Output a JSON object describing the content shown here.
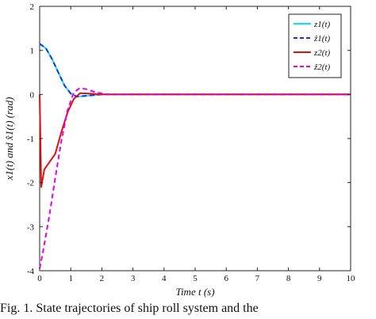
{
  "chart_data": {
    "type": "line",
    "title": "",
    "xlabel": "Time t (s)",
    "ylabel": "x1(t) and x̂1(t) (rad)",
    "xlim": [
      0,
      10
    ],
    "ylim": [
      -4,
      2
    ],
    "xticks": [
      "0",
      "1",
      "2",
      "3",
      "4",
      "5",
      "6",
      "7",
      "8",
      "9",
      "10"
    ],
    "yticks": [
      "2",
      "1",
      "0",
      "-1",
      "-2",
      "-3",
      "-4"
    ],
    "grid": false,
    "legend_position": "top-right",
    "series": [
      {
        "name": "z1(t)",
        "color": "#00e5ff",
        "style": "solid",
        "x": [
          0,
          0.2,
          0.4,
          0.6,
          0.8,
          1.0,
          1.2,
          1.5,
          2.0,
          3.0,
          10.0
        ],
        "y": [
          1.15,
          1.05,
          0.8,
          0.5,
          0.2,
          0.02,
          -0.05,
          -0.03,
          0.0,
          0.0,
          0.0
        ]
      },
      {
        "name": "ẑ1(t)",
        "color": "#1f2fd6",
        "style": "dashed",
        "x": [
          0,
          0.2,
          0.4,
          0.6,
          0.8,
          1.0,
          1.2,
          1.5,
          2.0,
          3.0,
          10.0
        ],
        "y": [
          1.15,
          1.05,
          0.8,
          0.5,
          0.2,
          0.02,
          -0.05,
          -0.03,
          0.0,
          0.0,
          0.0
        ]
      },
      {
        "name": "z2(t)",
        "color": "#e01010",
        "style": "solid",
        "x": [
          0,
          0.05,
          0.15,
          0.3,
          0.5,
          0.7,
          0.9,
          1.1,
          1.3,
          1.6,
          2.0,
          2.5,
          3.0,
          10.0
        ],
        "y": [
          0.0,
          -2.1,
          -1.7,
          -1.55,
          -1.35,
          -0.85,
          -0.4,
          -0.1,
          0.03,
          0.02,
          0.0,
          0.0,
          0.0,
          0.0
        ]
      },
      {
        "name": "ẑ2(t)",
        "color": "#e600e6",
        "style": "dashed",
        "x": [
          0,
          0.1,
          0.3,
          0.5,
          0.7,
          0.9,
          1.1,
          1.3,
          1.5,
          1.8,
          2.2,
          3.0,
          10.0
        ],
        "y": [
          -3.95,
          -3.6,
          -2.8,
          -1.9,
          -1.05,
          -0.35,
          0.05,
          0.15,
          0.12,
          0.05,
          0.0,
          0.0,
          0.0
        ]
      }
    ]
  },
  "caption": "Fig. 1.  State trajectories of ship roll system and the"
}
